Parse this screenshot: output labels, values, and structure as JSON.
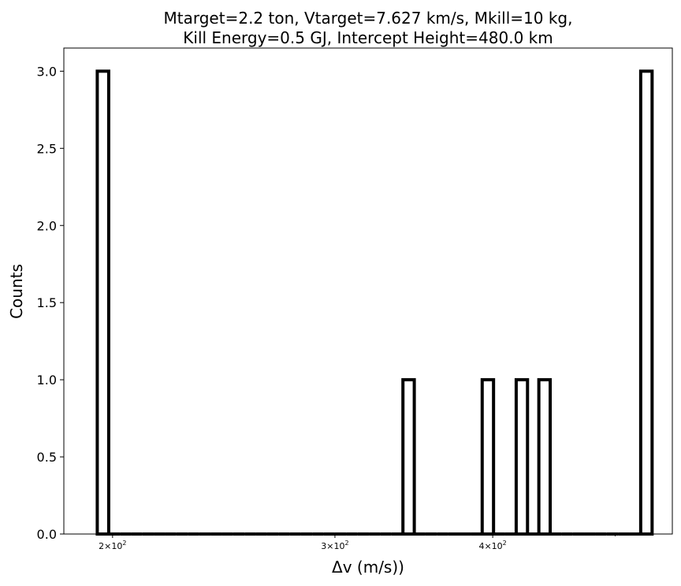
{
  "chart_data": {
    "type": "histogram",
    "title_lines": [
      "Mtarget=2.2 ton, Vtarget=7.627 km/s, Mkill=10 kg,",
      "Kill Energy=0.5 GJ, Intercept Height=480.0 km"
    ],
    "xlabel": "Δv (m/s))",
    "ylabel": "Counts",
    "x_scale": "log",
    "xlim": [
      183,
      555
    ],
    "ylim": [
      0,
      3.15
    ],
    "yticks": [
      "0.0",
      "0.5",
      "1.0",
      "1.5",
      "2.0",
      "2.5",
      "3.0"
    ],
    "xticks": [
      {
        "value": 200,
        "mantissa": "2",
        "base": "10",
        "exponent": "2"
      },
      {
        "value": 300,
        "mantissa": "3",
        "base": "10",
        "exponent": "2"
      },
      {
        "value": 400,
        "mantissa": "4",
        "base": "10",
        "exponent": "2"
      }
    ],
    "bin_edges": [
      194.5,
      198.6,
      202.7,
      206.9,
      211.2,
      215.6,
      220.1,
      224.7,
      229.4,
      234.2,
      239.1,
      244.1,
      249.2,
      254.4,
      259.7,
      265.1,
      270.6,
      276.3,
      282.0,
      287.9,
      293.9,
      300.0,
      306.3,
      312.7,
      319.2,
      325.8,
      332.6,
      339.6,
      346.7,
      353.9,
      361.3,
      368.8,
      376.5,
      384.4,
      392.4,
      400.6,
      408.9,
      417.5,
      426.2,
      435.1,
      444.2,
      453.4,
      462.9,
      472.5,
      482.4,
      492.4,
      502.7,
      513.2,
      523.9,
      534.9
    ],
    "counts": [
      3,
      0,
      0,
      0,
      0,
      0,
      0,
      0,
      0,
      0,
      0,
      0,
      0,
      0,
      0,
      0,
      0,
      0,
      0,
      0,
      0,
      0,
      0,
      0,
      0,
      0,
      0,
      1,
      0,
      0,
      0,
      0,
      0,
      0,
      1,
      0,
      0,
      1,
      0,
      1,
      0,
      0,
      0,
      0,
      0,
      0,
      0,
      0,
      3
    ],
    "color": "#000000",
    "grid": false
  }
}
